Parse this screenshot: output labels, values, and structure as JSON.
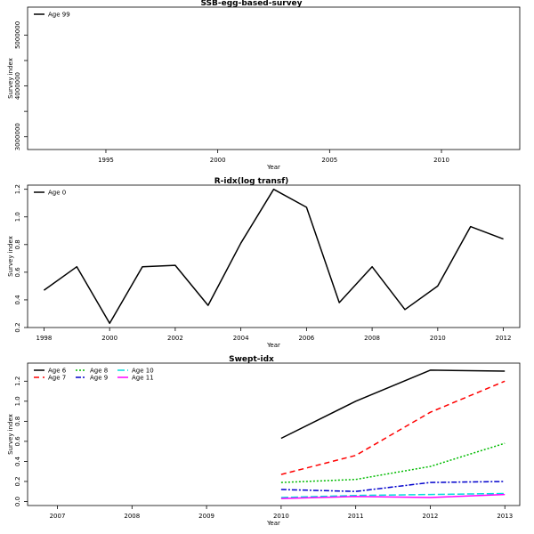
{
  "chart_data": [
    {
      "type": "line",
      "title": "SSB-egg-based-survey",
      "xlabel": "Year",
      "ylabel": "Survey index",
      "xlim": [
        1991.5,
        2013.5
      ],
      "ylim": [
        2750000,
        5550000
      ],
      "xticks": [
        1995,
        2000,
        2005,
        2010
      ],
      "yticks": [
        3000000,
        3500000,
        4000000,
        4500000,
        5000000
      ],
      "ytick_labels": [
        "3000000",
        "",
        "4000000",
        "",
        "5000000"
      ],
      "legend_position": "top-left",
      "series": [
        {
          "name": "Age 99",
          "color": "#000000",
          "dash": "",
          "x": [],
          "y": []
        }
      ]
    },
    {
      "type": "line",
      "title": "R-idx(log transf)",
      "xlabel": "Year",
      "ylabel": "Survey index",
      "xlim": [
        1997.5,
        2012.5
      ],
      "ylim": [
        0.2,
        1.23
      ],
      "xticks": [
        1998,
        2000,
        2002,
        2004,
        2006,
        2008,
        2010,
        2012
      ],
      "yticks": [
        0.2,
        0.4,
        0.6,
        0.8,
        1.0,
        1.2
      ],
      "ytick_labels": [
        "0.2",
        "0.4",
        "0.6",
        "0.8",
        "1.0",
        "1.2"
      ],
      "legend_position": "top-left",
      "series": [
        {
          "name": "Age 0",
          "color": "#000000",
          "dash": "",
          "x": [
            1998,
            1999,
            2000,
            2001,
            2002,
            2003,
            2004,
            2005,
            2006,
            2007,
            2008,
            2009,
            2010,
            2011,
            2012
          ],
          "y": [
            0.47,
            0.64,
            0.23,
            0.64,
            0.65,
            0.36,
            0.81,
            1.2,
            1.07,
            0.38,
            0.64,
            0.33,
            0.5,
            0.93,
            0.84
          ]
        }
      ]
    },
    {
      "type": "line",
      "title": "Swept-idx",
      "xlabel": "Year",
      "ylabel": "Survey index",
      "xlim": [
        2006.6,
        2013.2
      ],
      "ylim": [
        -0.04,
        1.38
      ],
      "xticks": [
        2007,
        2008,
        2009,
        2010,
        2011,
        2012,
        2013
      ],
      "yticks": [
        0.0,
        0.2,
        0.4,
        0.6,
        0.8,
        1.0,
        1.2
      ],
      "ytick_labels": [
        "0.0",
        "0.2",
        "0.4",
        "0.6",
        "0.8",
        "1.0",
        "1.2"
      ],
      "legend_position": "top-left",
      "legend_columns": 3,
      "series": [
        {
          "name": "Age 6",
          "color": "#000000",
          "dash": "",
          "x": [
            2010,
            2011,
            2012,
            2013
          ],
          "y": [
            0.63,
            1.0,
            1.31,
            1.3
          ]
        },
        {
          "name": "Age 7",
          "color": "#ff0000",
          "dash": "6,4",
          "x": [
            2010,
            2011,
            2012,
            2013
          ],
          "y": [
            0.27,
            0.46,
            0.89,
            1.2
          ]
        },
        {
          "name": "Age 8",
          "color": "#00bb00",
          "dash": "2,2",
          "x": [
            2010,
            2011,
            2012,
            2013
          ],
          "y": [
            0.19,
            0.22,
            0.35,
            0.58
          ]
        },
        {
          "name": "Age 9",
          "color": "#0000cc",
          "dash": "6,2,2,2",
          "x": [
            2010,
            2011,
            2012,
            2013
          ],
          "y": [
            0.12,
            0.1,
            0.19,
            0.2
          ]
        },
        {
          "name": "Age 10",
          "color": "#00dddd",
          "dash": "8,3",
          "x": [
            2010,
            2011,
            2012,
            2013
          ],
          "y": [
            0.04,
            0.06,
            0.07,
            0.08
          ]
        },
        {
          "name": "Age 11",
          "color": "#ff00ff",
          "dash": "",
          "x": [
            2010,
            2011,
            2012,
            2013
          ],
          "y": [
            0.03,
            0.05,
            0.04,
            0.07
          ]
        }
      ]
    }
  ]
}
